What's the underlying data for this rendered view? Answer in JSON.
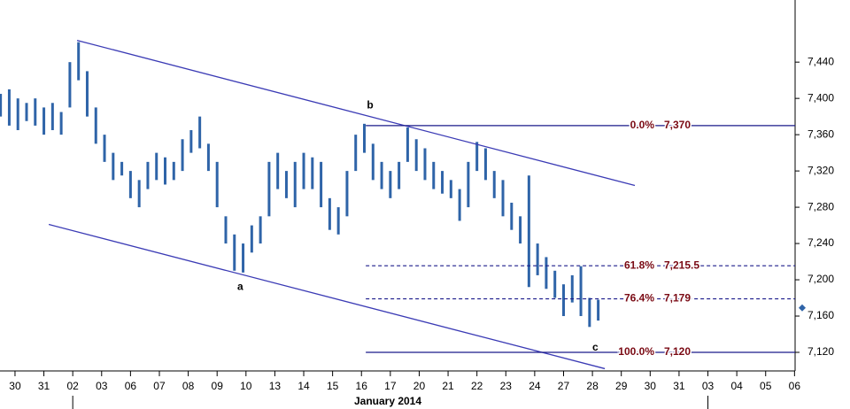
{
  "chart_data": {
    "type": "range-bar",
    "period_label": {
      "text": "January 2014",
      "from": 2,
      "to": 24
    },
    "xlim": [
      -0.52,
      27.02
    ],
    "ylim": [
      7099.5,
      7508.5
    ],
    "xticks": [
      {
        "value": 0,
        "label": "30"
      },
      {
        "value": 1,
        "label": "31"
      },
      {
        "value": 2,
        "label": "02"
      },
      {
        "value": 3,
        "label": "03"
      },
      {
        "value": 4,
        "label": "06"
      },
      {
        "value": 5,
        "label": "07"
      },
      {
        "value": 6,
        "label": "08"
      },
      {
        "value": 7,
        "label": "09"
      },
      {
        "value": 8,
        "label": "10"
      },
      {
        "value": 9,
        "label": "13"
      },
      {
        "value": 10,
        "label": "14"
      },
      {
        "value": 11,
        "label": "15"
      },
      {
        "value": 12,
        "label": "16"
      },
      {
        "value": 13,
        "label": "17"
      },
      {
        "value": 14,
        "label": "20"
      },
      {
        "value": 15,
        "label": "21"
      },
      {
        "value": 16,
        "label": "22"
      },
      {
        "value": 17,
        "label": "23"
      },
      {
        "value": 18,
        "label": "24"
      },
      {
        "value": 19,
        "label": "27"
      },
      {
        "value": 20,
        "label": "28"
      },
      {
        "value": 21,
        "label": "29"
      },
      {
        "value": 22,
        "label": "30"
      },
      {
        "value": 23,
        "label": "31"
      },
      {
        "value": 24,
        "label": "03"
      },
      {
        "value": 25,
        "label": "04"
      },
      {
        "value": 26,
        "label": "05"
      },
      {
        "value": 27,
        "label": "06"
      }
    ],
    "yticks": [
      {
        "value": 7120,
        "label": "7,120"
      },
      {
        "value": 7160,
        "label": "7,160"
      },
      {
        "value": 7200,
        "label": "7,200"
      },
      {
        "value": 7240,
        "label": "7,240"
      },
      {
        "value": 7280,
        "label": "7,280"
      },
      {
        "value": 7320,
        "label": "7,320"
      },
      {
        "value": 7360,
        "label": "7,360"
      },
      {
        "value": 7400,
        "label": "7,400"
      },
      {
        "value": 7440,
        "label": "7,440"
      }
    ],
    "color": "#2f64a8",
    "x": [
      -0.5,
      -0.2,
      0.1,
      0.4,
      0.7,
      1,
      1.3,
      1.6,
      1.9,
      2.2,
      2.5,
      2.8,
      3.1,
      3.4,
      3.7,
      4,
      4.3,
      4.6,
      4.9,
      5.2,
      5.5,
      5.8,
      6.1,
      6.4,
      6.7,
      7,
      7.3,
      7.6,
      7.9,
      8.2,
      8.5,
      8.8,
      9.1,
      9.4,
      9.7,
      10,
      10.3,
      10.6,
      10.9,
      11.2,
      11.5,
      11.8,
      12.1,
      12.4,
      12.7,
      13,
      13.3,
      13.6,
      13.9,
      14.2,
      14.5,
      14.8,
      15.1,
      15.4,
      15.7,
      16,
      16.3,
      16.6,
      16.9,
      17.2,
      17.5,
      17.8,
      18.1,
      18.4,
      18.7,
      19,
      19.3,
      19.6,
      19.9,
      20.2
    ],
    "high": [
      7405,
      7410,
      7400,
      7395,
      7400,
      7390,
      7395,
      7385,
      7440,
      7462,
      7430,
      7390,
      7360,
      7340,
      7330,
      7320,
      7310,
      7330,
      7340,
      7335,
      7330,
      7355,
      7365,
      7380,
      7350,
      7330,
      7270,
      7250,
      7240,
      7260,
      7270,
      7330,
      7340,
      7320,
      7330,
      7340,
      7335,
      7330,
      7290,
      7280,
      7320,
      7360,
      7372,
      7350,
      7330,
      7320,
      7330,
      7368,
      7355,
      7345,
      7330,
      7320,
      7310,
      7300,
      7330,
      7352,
      7345,
      7320,
      7310,
      7285,
      7270,
      7315,
      7240,
      7225,
      7210,
      7195,
      7205,
      7215,
      7180,
      7178
    ],
    "low": [
      7380,
      7370,
      7365,
      7375,
      7370,
      7360,
      7365,
      7360,
      7390,
      7420,
      7380,
      7350,
      7330,
      7310,
      7315,
      7290,
      7280,
      7300,
      7310,
      7305,
      7310,
      7320,
      7340,
      7345,
      7320,
      7280,
      7240,
      7210,
      7208,
      7230,
      7240,
      7270,
      7300,
      7290,
      7280,
      7300,
      7300,
      7280,
      7255,
      7250,
      7270,
      7320,
      7340,
      7310,
      7300,
      7290,
      7300,
      7330,
      7320,
      7310,
      7300,
      7295,
      7290,
      7265,
      7280,
      7320,
      7310,
      7290,
      7270,
      7255,
      7240,
      7192,
      7205,
      7190,
      7180,
      7160,
      7175,
      7160,
      7148,
      7155
    ],
    "trendlines": [
      {
        "x": [
          2.15,
          21.47
        ],
        "y": [
          7464,
          7304
        ],
        "color": "#3b3bb5"
      },
      {
        "x": [
          1.17,
          20.43
        ],
        "y": [
          7261,
          7102
        ],
        "color": "#3b3bb5"
      }
    ],
    "annotations": [
      {
        "text": "a",
        "x": 7.8,
        "y": 7192
      },
      {
        "text": "b",
        "x": 12.3,
        "y": 7392
      },
      {
        "text": "c",
        "x": 20.1,
        "y": 7125
      }
    ],
    "fib_levels": [
      {
        "percent": "0.0%",
        "value": 7370,
        "value_label": "7,370",
        "style": "solid"
      },
      {
        "percent": "61.8%",
        "value": 7215.5,
        "value_label": "7,215.5",
        "style": "dashed"
      },
      {
        "percent": "76.4%",
        "value": 7179,
        "value_label": "7,179",
        "style": "dashed"
      },
      {
        "percent": "100.0%",
        "value": 7120,
        "value_label": "7,120",
        "style": "solid"
      }
    ],
    "fib_start": 12.15,
    "last_price": 7169
  }
}
